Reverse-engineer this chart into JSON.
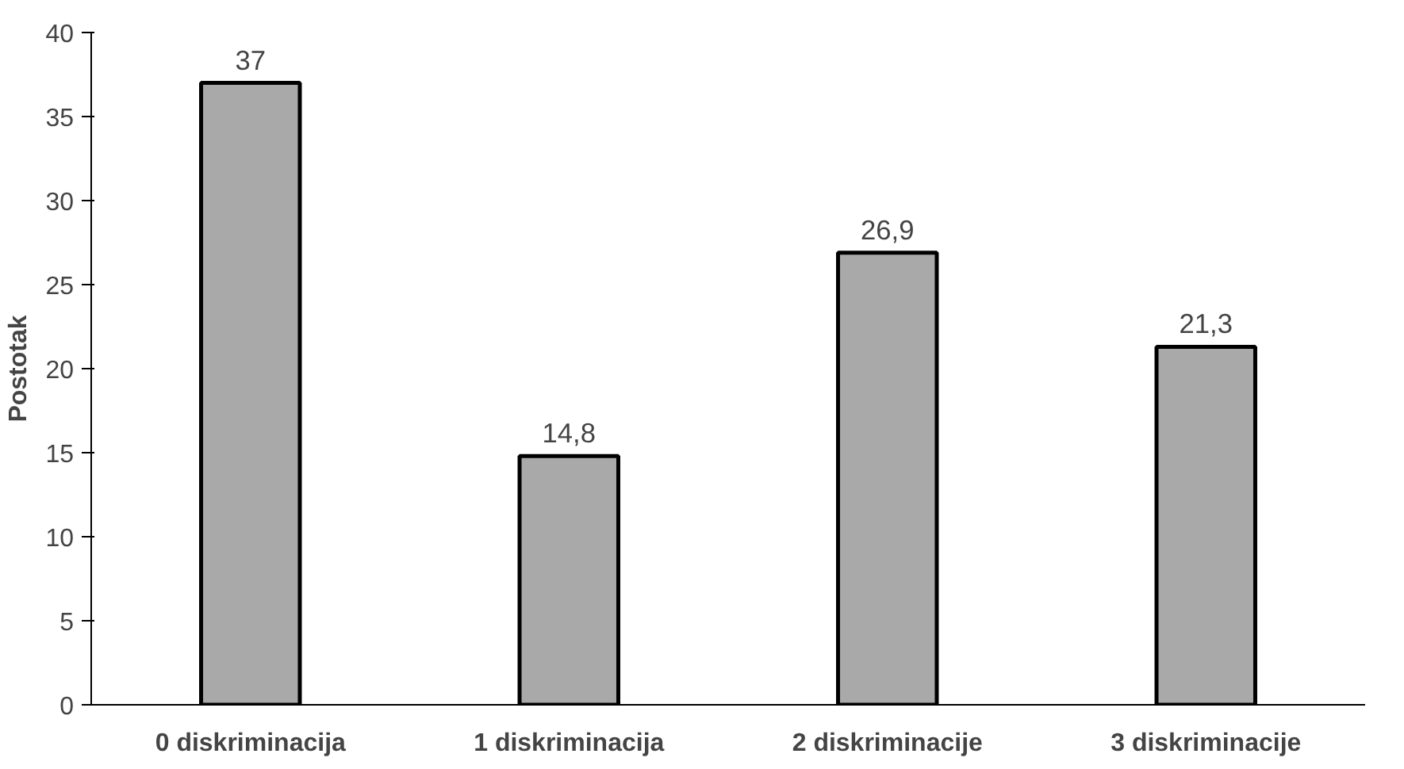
{
  "chart_data": {
    "type": "bar",
    "ylabel": "Postotak",
    "categories": [
      "0 diskriminacija",
      "1 diskriminacija",
      "2 diskriminacije",
      "3 diskriminacije"
    ],
    "values": [
      37,
      14.8,
      26.9,
      21.3
    ],
    "value_labels": [
      "37",
      "14,8",
      "26,9",
      "21,3"
    ],
    "color": "#a9a9a9",
    "ylim": [
      0,
      40
    ],
    "yticks": [
      0,
      5,
      10,
      15,
      20,
      25,
      30,
      35,
      40
    ],
    "grid": false
  }
}
